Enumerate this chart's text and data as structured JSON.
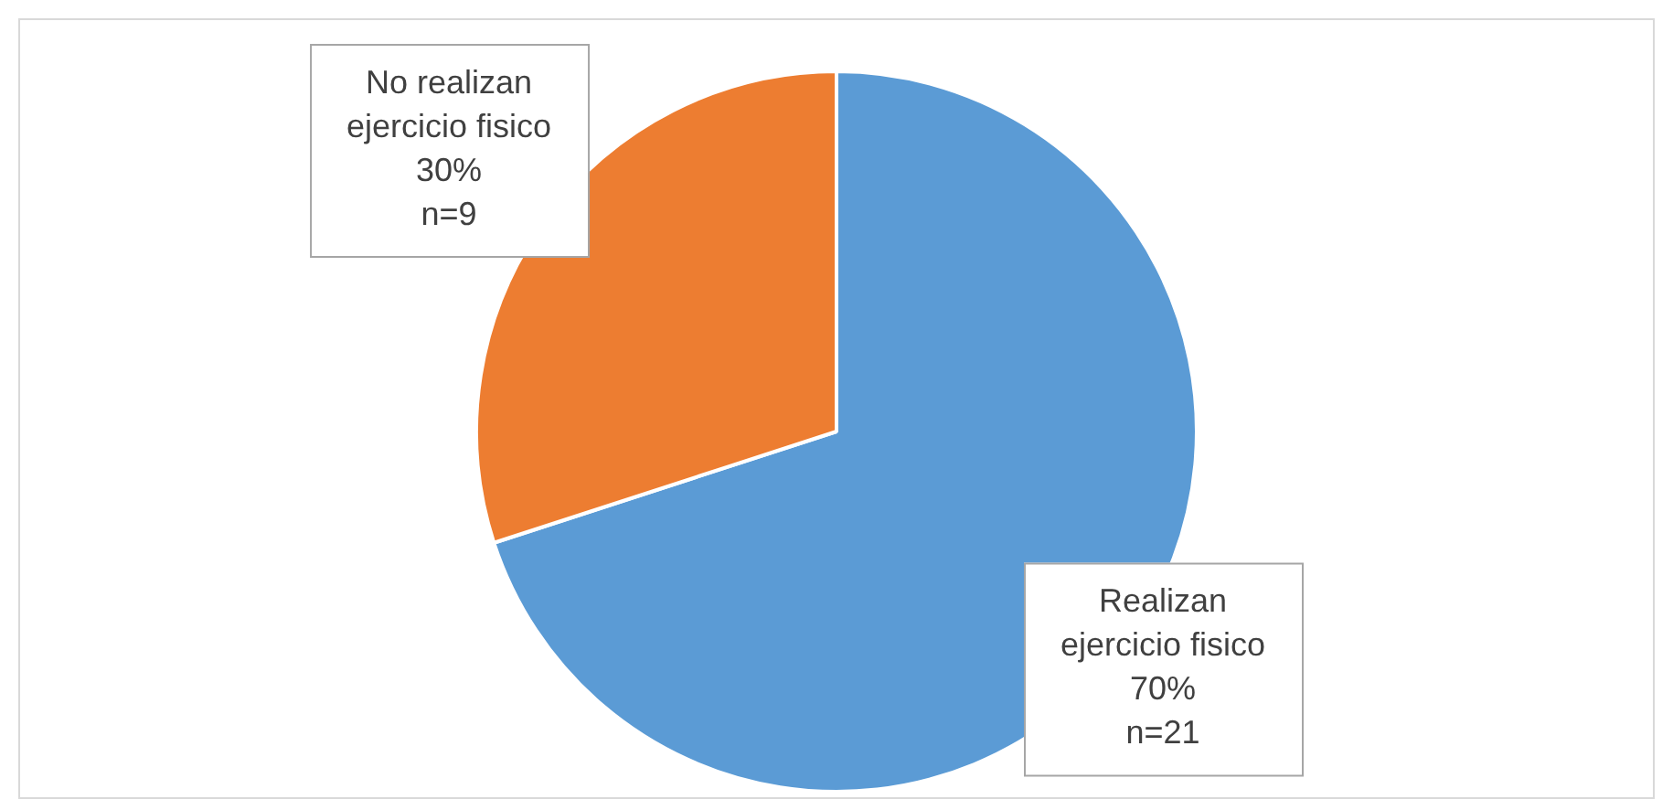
{
  "chart_data": {
    "type": "pie",
    "categories": [
      "Realizan ejercicio fisico",
      "No realizan ejercicio fisico"
    ],
    "values": [
      70,
      30
    ],
    "value_labels": [
      "70%\nn=21",
      "30%\nn=9"
    ],
    "colors": [
      "#5b9bd5",
      "#ed7d31"
    ],
    "legend": false
  }
}
